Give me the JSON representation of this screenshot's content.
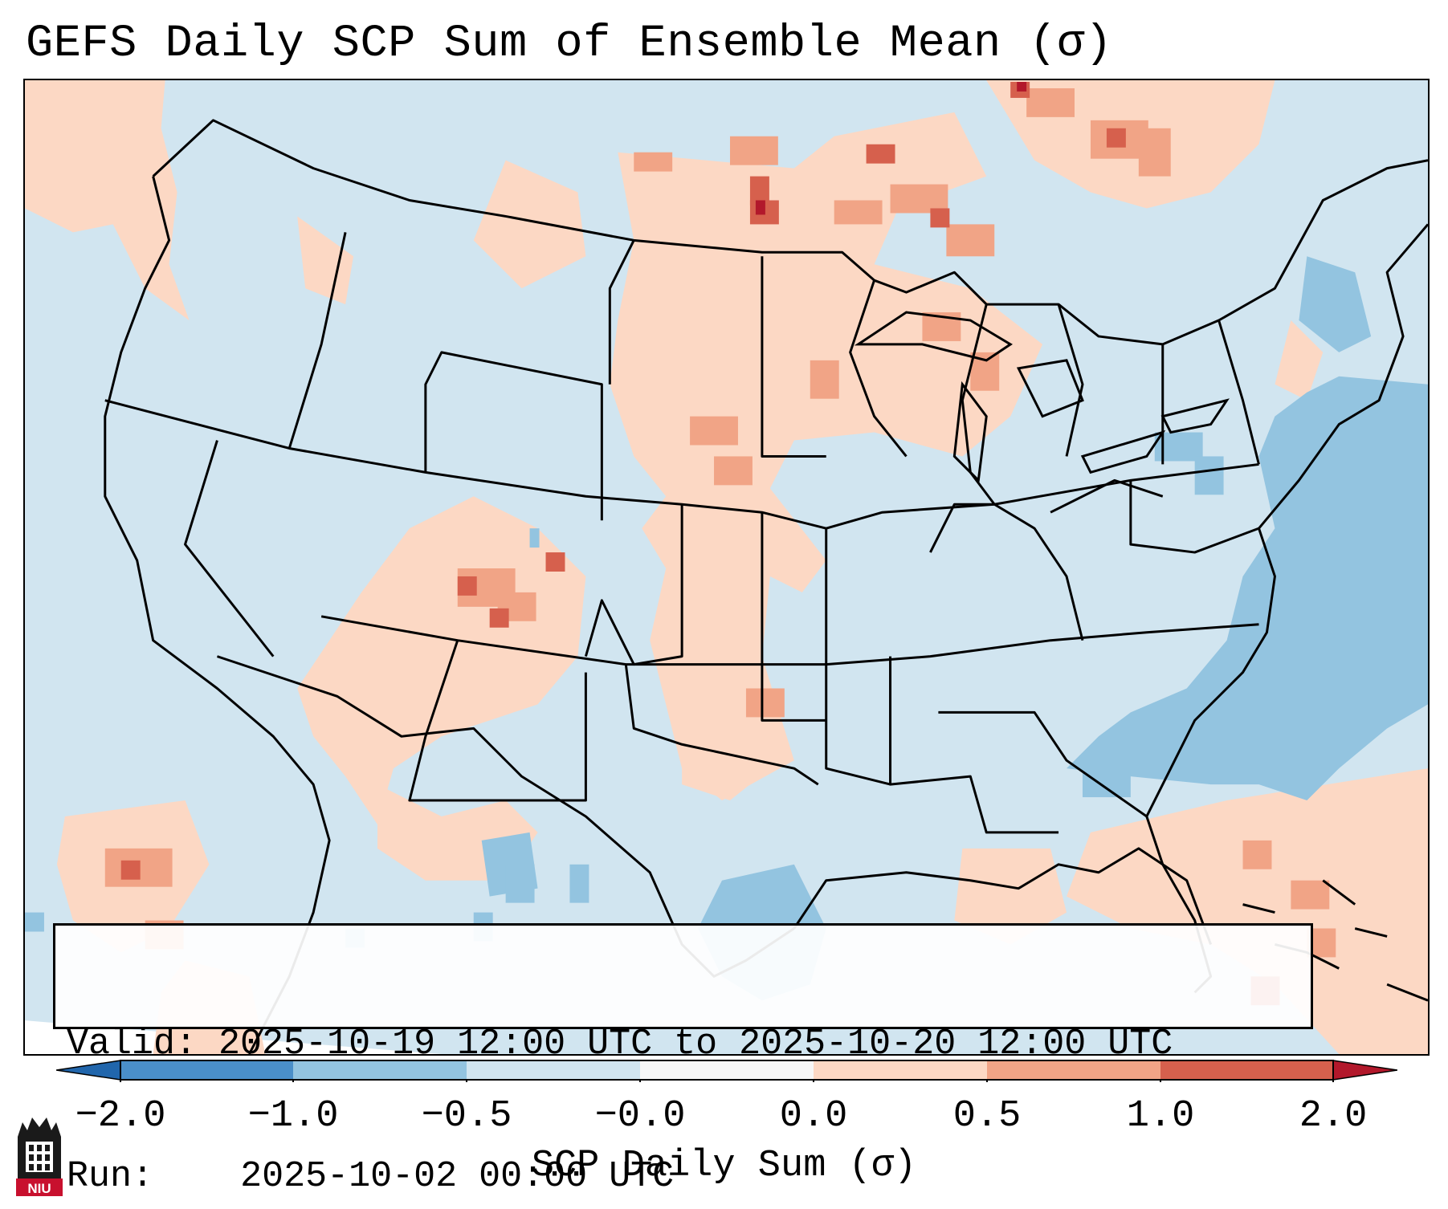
{
  "title": "GEFS Daily SCP Sum of Ensemble Mean (σ)",
  "info": {
    "valid_label": "Valid:",
    "valid_value": "2025-10-19 12:00 UTC to 2025-10-20 12:00 UTC",
    "run_label": "Run:",
    "run_value": "2025-10-02 00:00 UTC"
  },
  "colorbar": {
    "label": "SCP Daily Sum (σ)",
    "ticks": [
      "−2.0",
      "−1.0",
      "−0.5",
      "−0.0",
      "0.0",
      "0.5",
      "1.0",
      "2.0"
    ],
    "bins": [
      {
        "range": "−2.0 to −1.0",
        "color": "#4a8fc9"
      },
      {
        "range": "−1.0 to −0.5",
        "color": "#93c4e0"
      },
      {
        "range": "−0.5 to −0.0",
        "color": "#d1e5f0"
      },
      {
        "range": "−0.0 to 0.0",
        "color": "#f7f7f7"
      },
      {
        "range": "0.0 to 0.5",
        "color": "#fcd8c4"
      },
      {
        "range": "0.5 to 1.0",
        "color": "#f1a486"
      },
      {
        "range": "1.0 to 2.0",
        "color": "#d6604d"
      }
    ],
    "under_color": "#2166ac",
    "over_color": "#b2182b"
  },
  "logo": {
    "text": "NIU",
    "color": "#c8102e"
  }
}
